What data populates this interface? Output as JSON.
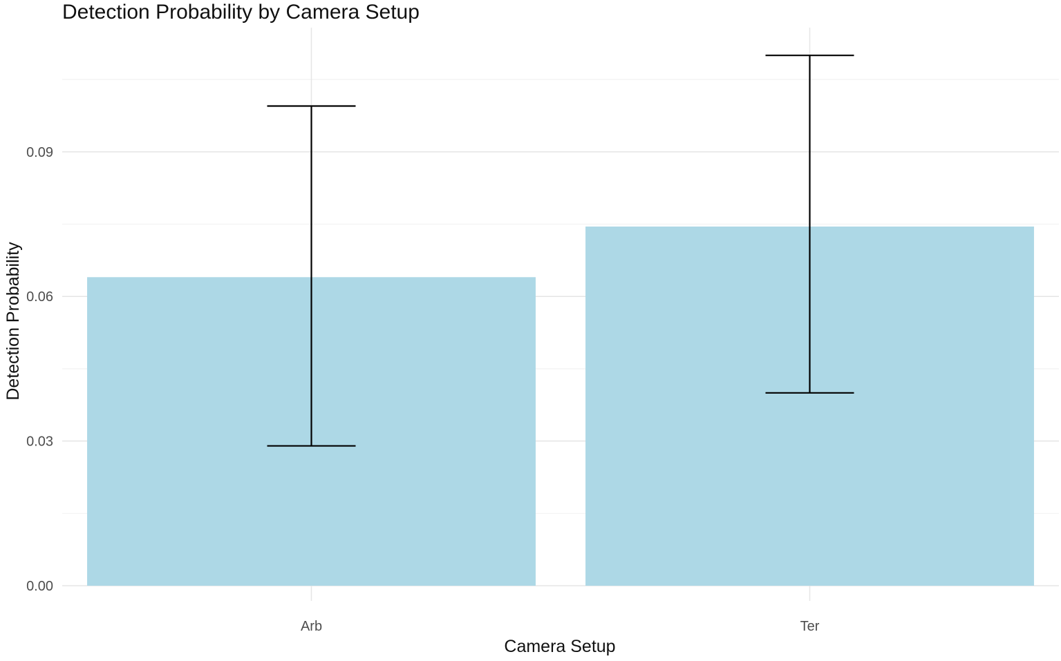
{
  "chart_data": {
    "type": "bar",
    "title": "Detection Probability by Camera Setup",
    "xlabel": "Camera Setup",
    "ylabel": "Detection Probability",
    "categories": [
      "Arb",
      "Ter"
    ],
    "values": [
      0.064,
      0.0745
    ],
    "error_lower": [
      0.029,
      0.04
    ],
    "error_upper": [
      0.0995,
      0.11
    ],
    "ylim": [
      0,
      0.11
    ],
    "yticks": [
      0.0,
      0.03,
      0.06,
      0.09
    ],
    "ytick_labels": [
      "0.00",
      "0.03",
      "0.06",
      "0.09"
    ],
    "grid": true,
    "legend": "none",
    "bar_color": "#add8e6",
    "error_bar_color": "#000000"
  }
}
